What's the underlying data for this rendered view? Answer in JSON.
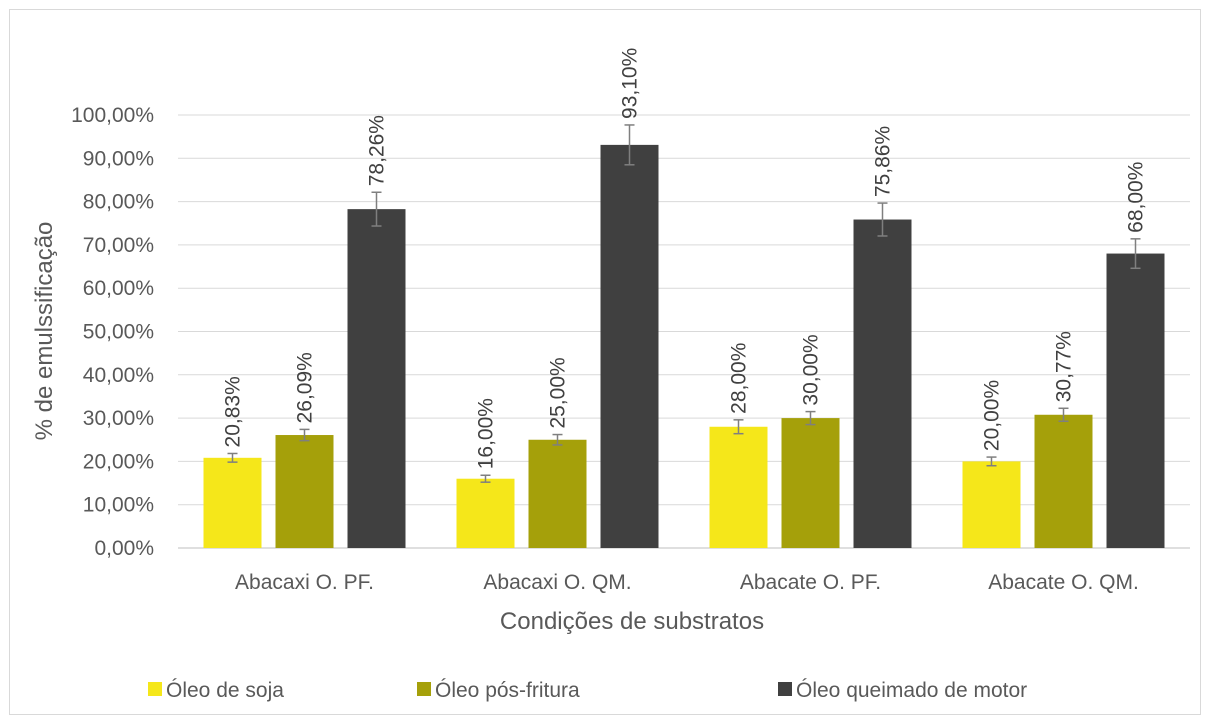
{
  "chart_data": {
    "type": "bar",
    "xlabel": "Condições de substratos",
    "ylabel": "% de emulssificação",
    "ylim": [
      0,
      100
    ],
    "ytick_step": 10,
    "ytick_labels": [
      "0,00%",
      "10,00%",
      "20,00%",
      "30,00%",
      "40,00%",
      "50,00%",
      "60,00%",
      "70,00%",
      "80,00%",
      "90,00%",
      "100,00%"
    ],
    "grid": true,
    "legend_position": "bottom",
    "categories": [
      "Abacaxi O. PF.",
      "Abacaxi O. QM.",
      "Abacate O. PF.",
      "Abacate O. QM."
    ],
    "series": [
      {
        "name": "Óleo de soja",
        "color": "#f5e71a",
        "values": [
          20.83,
          16.0,
          28.0,
          20.0
        ],
        "labels": [
          "20,83%",
          "16,00%",
          "28,00%",
          "20,00%"
        ],
        "errors": [
          1.0,
          0.8,
          1.6,
          1.0
        ]
      },
      {
        "name": "Óleo pós-fritura",
        "color": "#a5a00a",
        "values": [
          26.09,
          25.0,
          30.0,
          30.77
        ],
        "labels": [
          "26,09%",
          "25,00%",
          "30,00%",
          "30,77%"
        ],
        "errors": [
          1.3,
          1.2,
          1.5,
          1.5
        ]
      },
      {
        "name": "Óleo queimado de motor",
        "color": "#404040",
        "values": [
          78.26,
          93.1,
          75.86,
          68.0
        ],
        "labels": [
          "78,26%",
          "93,10%",
          "75,86%",
          "68,00%"
        ],
        "errors": [
          3.9,
          4.6,
          3.8,
          3.4
        ]
      }
    ]
  }
}
